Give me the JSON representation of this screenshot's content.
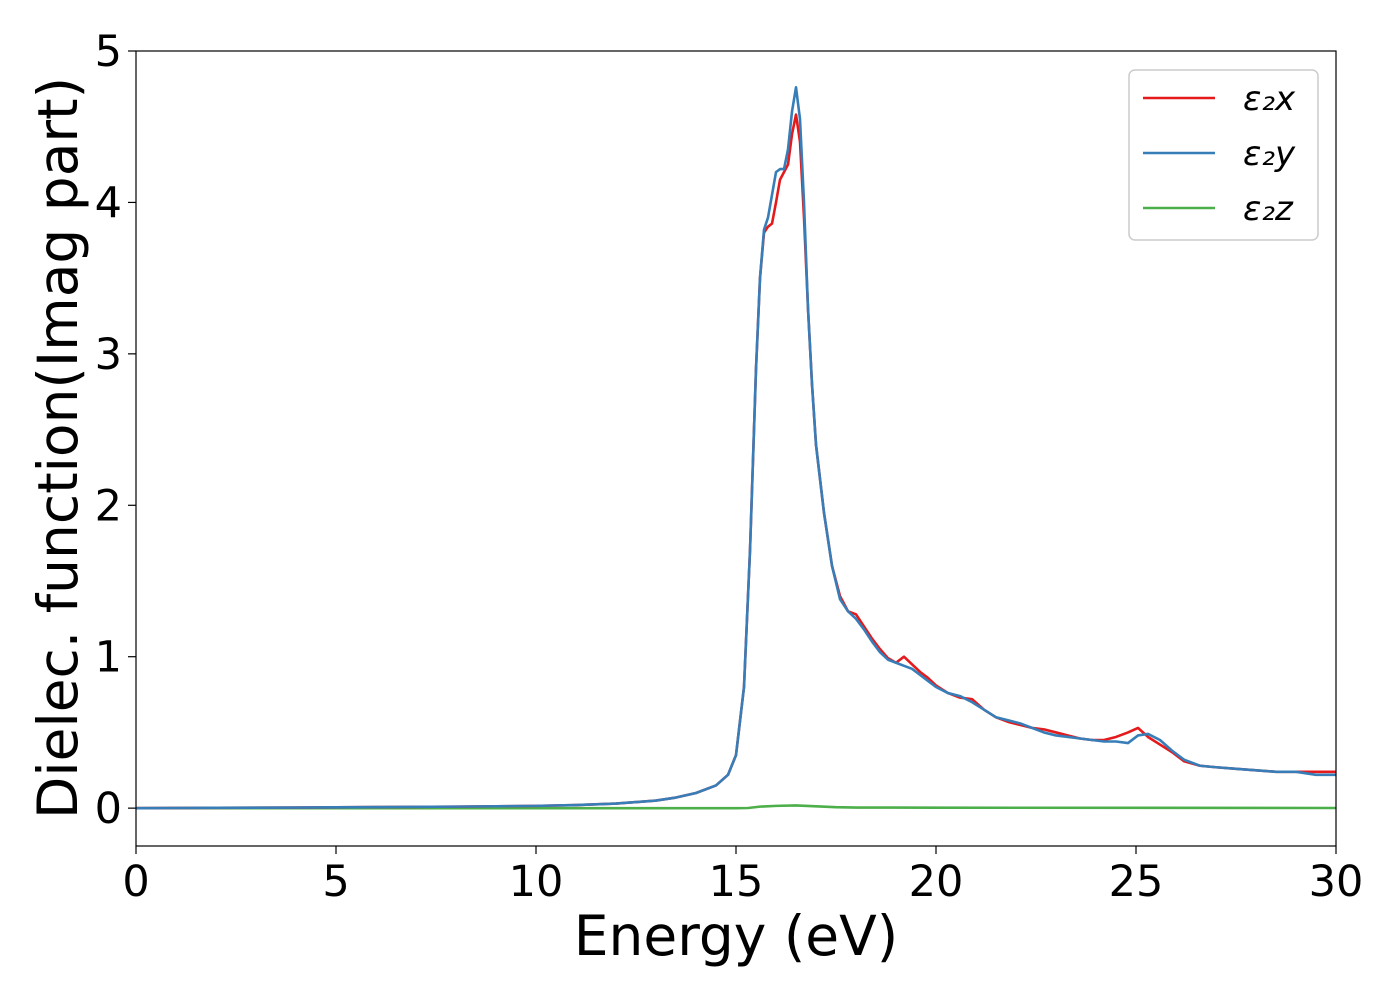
{
  "chart_data": {
    "type": "line",
    "xlabel": "Energy (eV)",
    "ylabel": "Dielec. function(Imag part)",
    "xlim": [
      0,
      30
    ],
    "ylim": [
      -0.25,
      5
    ],
    "xticks": [
      "0",
      "5",
      "10",
      "15",
      "20",
      "25",
      "30"
    ],
    "yticks": [
      "0",
      "1",
      "2",
      "3",
      "4",
      "5"
    ],
    "grid": false,
    "legend_position": "top-right",
    "series": [
      {
        "name": "ε₂x",
        "color": "#e41a1c",
        "x": [
          0,
          2,
          4,
          6,
          8,
          10,
          11,
          12,
          13,
          13.5,
          14,
          14.5,
          14.8,
          15,
          15.2,
          15.35,
          15.5,
          15.6,
          15.7,
          15.8,
          15.9,
          16.0,
          16.1,
          16.2,
          16.3,
          16.4,
          16.5,
          16.6,
          16.7,
          16.8,
          16.9,
          17.0,
          17.2,
          17.4,
          17.6,
          17.8,
          18.0,
          18.2,
          18.4,
          18.6,
          18.8,
          19.0,
          19.2,
          19.4,
          19.6,
          19.8,
          20.0,
          20.3,
          20.6,
          20.9,
          21.2,
          21.5,
          21.8,
          22.1,
          22.4,
          22.7,
          23.0,
          23.3,
          23.6,
          23.9,
          24.2,
          24.5,
          24.8,
          25.05,
          25.3,
          25.6,
          25.9,
          26.2,
          26.6,
          27.0,
          27.5,
          28.0,
          28.5,
          29.0,
          29.5,
          30.0
        ],
        "values": [
          0.0,
          0.002,
          0.004,
          0.007,
          0.01,
          0.015,
          0.02,
          0.03,
          0.05,
          0.07,
          0.1,
          0.15,
          0.22,
          0.35,
          0.8,
          1.7,
          2.9,
          3.5,
          3.8,
          3.84,
          3.86,
          4.0,
          4.15,
          4.2,
          4.25,
          4.45,
          4.58,
          4.4,
          3.9,
          3.3,
          2.8,
          2.4,
          1.95,
          1.6,
          1.4,
          1.3,
          1.28,
          1.2,
          1.12,
          1.05,
          0.99,
          0.96,
          1.0,
          0.95,
          0.9,
          0.86,
          0.81,
          0.76,
          0.73,
          0.72,
          0.65,
          0.6,
          0.57,
          0.55,
          0.53,
          0.52,
          0.5,
          0.48,
          0.46,
          0.45,
          0.45,
          0.47,
          0.5,
          0.53,
          0.47,
          0.42,
          0.37,
          0.31,
          0.28,
          0.27,
          0.26,
          0.25,
          0.24,
          0.24,
          0.24,
          0.24
        ]
      },
      {
        "name": "ε₂y",
        "color": "#377eb8",
        "x": [
          0,
          2,
          4,
          6,
          8,
          10,
          11,
          12,
          13,
          13.5,
          14,
          14.5,
          14.8,
          15,
          15.2,
          15.35,
          15.5,
          15.6,
          15.7,
          15.8,
          15.9,
          16.0,
          16.1,
          16.2,
          16.3,
          16.4,
          16.5,
          16.6,
          16.7,
          16.8,
          16.9,
          17.0,
          17.2,
          17.4,
          17.6,
          17.8,
          18.0,
          18.2,
          18.4,
          18.6,
          18.8,
          19.0,
          19.2,
          19.4,
          19.6,
          19.8,
          20.0,
          20.3,
          20.6,
          20.9,
          21.2,
          21.5,
          21.8,
          22.1,
          22.4,
          22.7,
          23.0,
          23.3,
          23.6,
          23.9,
          24.2,
          24.5,
          24.8,
          25.05,
          25.3,
          25.6,
          25.9,
          26.2,
          26.6,
          27.0,
          27.5,
          28.0,
          28.5,
          29.0,
          29.5,
          30.0
        ],
        "values": [
          0.0,
          0.002,
          0.004,
          0.007,
          0.01,
          0.015,
          0.02,
          0.03,
          0.05,
          0.07,
          0.1,
          0.15,
          0.22,
          0.35,
          0.8,
          1.7,
          2.9,
          3.5,
          3.82,
          3.9,
          4.05,
          4.2,
          4.22,
          4.22,
          4.35,
          4.6,
          4.76,
          4.55,
          4.0,
          3.3,
          2.8,
          2.4,
          1.95,
          1.6,
          1.38,
          1.3,
          1.25,
          1.18,
          1.1,
          1.03,
          0.98,
          0.96,
          0.94,
          0.92,
          0.88,
          0.84,
          0.8,
          0.76,
          0.74,
          0.7,
          0.65,
          0.6,
          0.58,
          0.56,
          0.53,
          0.5,
          0.48,
          0.47,
          0.46,
          0.45,
          0.44,
          0.44,
          0.43,
          0.48,
          0.49,
          0.45,
          0.38,
          0.32,
          0.28,
          0.27,
          0.26,
          0.25,
          0.24,
          0.24,
          0.22,
          0.22
        ]
      },
      {
        "name": "ε₂z",
        "color": "#4daf4a",
        "x": [
          0,
          5,
          10,
          15,
          15.3,
          15.6,
          16.0,
          16.5,
          17.0,
          17.5,
          18,
          20,
          25,
          30
        ],
        "values": [
          0.0,
          0.0,
          0.0,
          0.0,
          0.001,
          0.01,
          0.015,
          0.018,
          0.012,
          0.006,
          0.004,
          0.003,
          0.002,
          0.001
        ]
      }
    ]
  }
}
